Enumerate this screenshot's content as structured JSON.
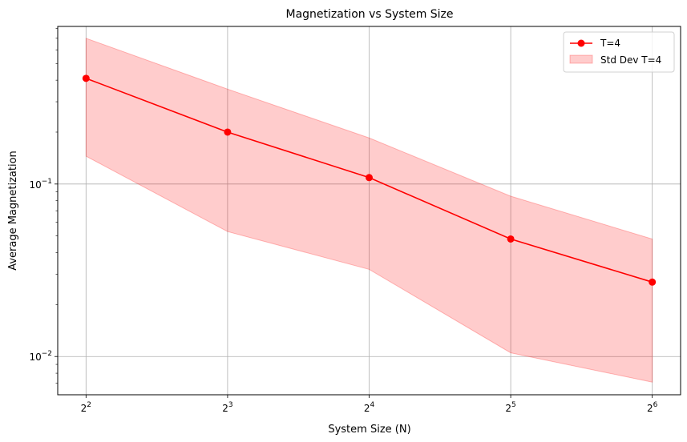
{
  "chart_data": {
    "type": "line",
    "title": "Magnetization vs System Size",
    "xlabel": "System Size (N)",
    "ylabel": "Average Magnetization",
    "x_scale": "log2",
    "y_scale": "log10",
    "x": [
      4,
      8,
      16,
      32,
      64
    ],
    "x_tick_labels": [
      {
        "base": "2",
        "exp": "2"
      },
      {
        "base": "2",
        "exp": "3"
      },
      {
        "base": "2",
        "exp": "4"
      },
      {
        "base": "2",
        "exp": "5"
      },
      {
        "base": "2",
        "exp": "6"
      }
    ],
    "y_ticks": [
      {
        "value": 0.1,
        "base": "10",
        "exp": "−1"
      },
      {
        "value": 0.01,
        "base": "10",
        "exp": "−2"
      }
    ],
    "ylim": [
      0.006,
      0.82
    ],
    "series": [
      {
        "name": "T=4",
        "values": [
          0.41,
          0.2,
          0.109,
          0.048,
          0.027
        ],
        "color": "#ff0000"
      }
    ],
    "band": {
      "name": "Std Dev T=4",
      "upper": [
        0.7,
        0.355,
        0.185,
        0.085,
        0.048
      ],
      "lower": [
        0.145,
        0.053,
        0.032,
        0.0105,
        0.0071
      ],
      "color": "#ff0000",
      "opacity": 0.2
    },
    "grid": true,
    "legend_position": "top-right"
  }
}
